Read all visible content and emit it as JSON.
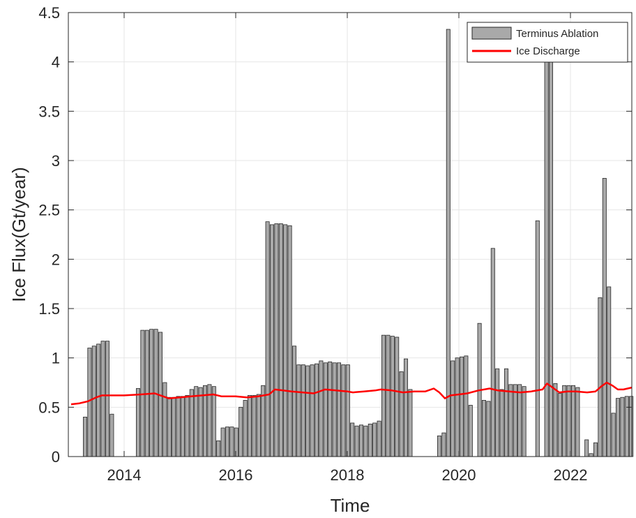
{
  "chart_data": {
    "type": "bar",
    "xlabel": "Time",
    "ylabel": "Ice Flux(Gt/year)",
    "xlim": [
      2013.0,
      2023.1
    ],
    "ylim": [
      0,
      4.5
    ],
    "x_ticks": [
      2014,
      2016,
      2018,
      2020,
      2022
    ],
    "y_ticks": [
      0,
      0.5,
      1,
      1.5,
      2,
      2.5,
      3,
      3.5,
      4,
      4.5
    ],
    "y_tick_labels": [
      "0",
      "0.5",
      "1",
      "1.5",
      "2",
      "2.5",
      "3",
      "3.5",
      "4",
      "4.5"
    ],
    "grid": true,
    "legend_position": "top-right",
    "bar_width_years": 0.065,
    "series": [
      {
        "name": "Terminus Ablation",
        "kind": "bar",
        "color": "#a9a9a9",
        "edge_color": "#262626",
        "x": [
          2013.3,
          2013.38,
          2013.46,
          2013.54,
          2013.62,
          2013.7,
          2013.78,
          2013.86,
          2014.25,
          2014.33,
          2014.41,
          2014.49,
          2014.57,
          2014.65,
          2014.73,
          2014.81,
          2014.89,
          2014.97,
          2015.05,
          2015.13,
          2015.21,
          2015.29,
          2015.37,
          2015.45,
          2015.53,
          2015.61,
          2015.69,
          2015.77,
          2015.85,
          2015.93,
          2016.01,
          2016.09,
          2016.17,
          2016.25,
          2016.33,
          2016.41,
          2016.49,
          2016.57,
          2016.65,
          2016.73,
          2016.81,
          2016.89,
          2016.97,
          2017.05,
          2017.13,
          2017.21,
          2017.29,
          2017.37,
          2017.45,
          2017.53,
          2017.61,
          2017.69,
          2017.77,
          2017.85,
          2017.93,
          2018.01,
          2018.09,
          2018.17,
          2018.25,
          2018.33,
          2018.41,
          2018.49,
          2018.57,
          2018.65,
          2018.73,
          2018.81,
          2018.89,
          2018.97,
          2019.05,
          2019.13,
          2019.21,
          2019.29,
          2019.37,
          2019.65,
          2019.73,
          2019.81,
          2019.89,
          2019.97,
          2020.05,
          2020.13,
          2020.21,
          2020.37,
          2020.45,
          2020.53,
          2020.61,
          2020.69,
          2020.77,
          2020.85,
          2020.93,
          2021.01,
          2021.09,
          2021.17,
          2021.41,
          2021.57,
          2021.65,
          2021.73,
          2021.81,
          2021.89,
          2021.97,
          2022.05,
          2022.13,
          2022.29,
          2022.37,
          2022.45,
          2022.53,
          2022.61,
          2022.69,
          2022.77,
          2022.85,
          2022.93,
          2023.01,
          2023.09
        ],
        "values": [
          0.4,
          1.1,
          1.12,
          1.14,
          1.17,
          1.17,
          0.43,
          0,
          0.69,
          1.28,
          1.28,
          1.29,
          1.29,
          1.26,
          0.75,
          0.6,
          0.6,
          0.61,
          0.61,
          0.62,
          0.68,
          0.71,
          0.7,
          0.72,
          0.73,
          0.71,
          0.16,
          0.29,
          0.3,
          0.3,
          0.29,
          0.5,
          0.57,
          0.62,
          0.62,
          0.63,
          0.72,
          2.38,
          2.35,
          2.36,
          2.36,
          2.35,
          2.34,
          1.12,
          0.93,
          0.93,
          0.92,
          0.93,
          0.94,
          0.97,
          0.95,
          0.96,
          0.95,
          0.95,
          0.93,
          0.93,
          0.34,
          0.31,
          0.32,
          0.31,
          0.33,
          0.34,
          0.36,
          1.23,
          1.23,
          1.22,
          1.21,
          0.86,
          0.99,
          0.68,
          0,
          0,
          0,
          0.21,
          0.24,
          4.33,
          0.97,
          1.0,
          1.01,
          1.02,
          0.52,
          1.35,
          0.57,
          0.56,
          2.11,
          0.89,
          0.68,
          0.89,
          0.73,
          0.73,
          0.73,
          0.71,
          2.39,
          4.08,
          4.08,
          0.74,
          0.64,
          0.72,
          0.72,
          0.72,
          0.7,
          0.17,
          0.03,
          0.14,
          1.61,
          2.82,
          1.72,
          0.44,
          0.59,
          0.6,
          0.61,
          0.61
        ]
      },
      {
        "name": "Ice Discharge",
        "kind": "line",
        "color": "#ff0000",
        "x": [
          2013.05,
          2013.2,
          2013.35,
          2013.5,
          2013.6,
          2013.75,
          2014.0,
          2014.3,
          2014.55,
          2014.65,
          2014.8,
          2015.0,
          2015.2,
          2015.4,
          2015.6,
          2015.75,
          2016.0,
          2016.2,
          2016.4,
          2016.6,
          2016.7,
          2016.85,
          2017.0,
          2017.2,
          2017.4,
          2017.6,
          2017.8,
          2018.0,
          2018.1,
          2018.3,
          2018.5,
          2018.6,
          2018.8,
          2019.0,
          2019.2,
          2019.4,
          2019.55,
          2019.65,
          2019.75,
          2019.85,
          2020.0,
          2020.15,
          2020.35,
          2020.55,
          2020.7,
          2020.9,
          2021.1,
          2021.3,
          2021.5,
          2021.58,
          2021.68,
          2021.8,
          2021.95,
          2022.1,
          2022.3,
          2022.45,
          2022.55,
          2022.65,
          2022.75,
          2022.85,
          2022.95,
          2023.1
        ],
        "values": [
          0.53,
          0.54,
          0.56,
          0.6,
          0.62,
          0.62,
          0.62,
          0.63,
          0.64,
          0.62,
          0.59,
          0.6,
          0.61,
          0.62,
          0.63,
          0.61,
          0.61,
          0.6,
          0.61,
          0.63,
          0.68,
          0.67,
          0.66,
          0.65,
          0.64,
          0.68,
          0.67,
          0.66,
          0.65,
          0.66,
          0.67,
          0.68,
          0.67,
          0.65,
          0.66,
          0.66,
          0.69,
          0.65,
          0.59,
          0.62,
          0.63,
          0.64,
          0.67,
          0.69,
          0.67,
          0.66,
          0.65,
          0.66,
          0.68,
          0.74,
          0.7,
          0.65,
          0.66,
          0.66,
          0.65,
          0.66,
          0.71,
          0.75,
          0.72,
          0.68,
          0.68,
          0.7
        ]
      }
    ]
  }
}
